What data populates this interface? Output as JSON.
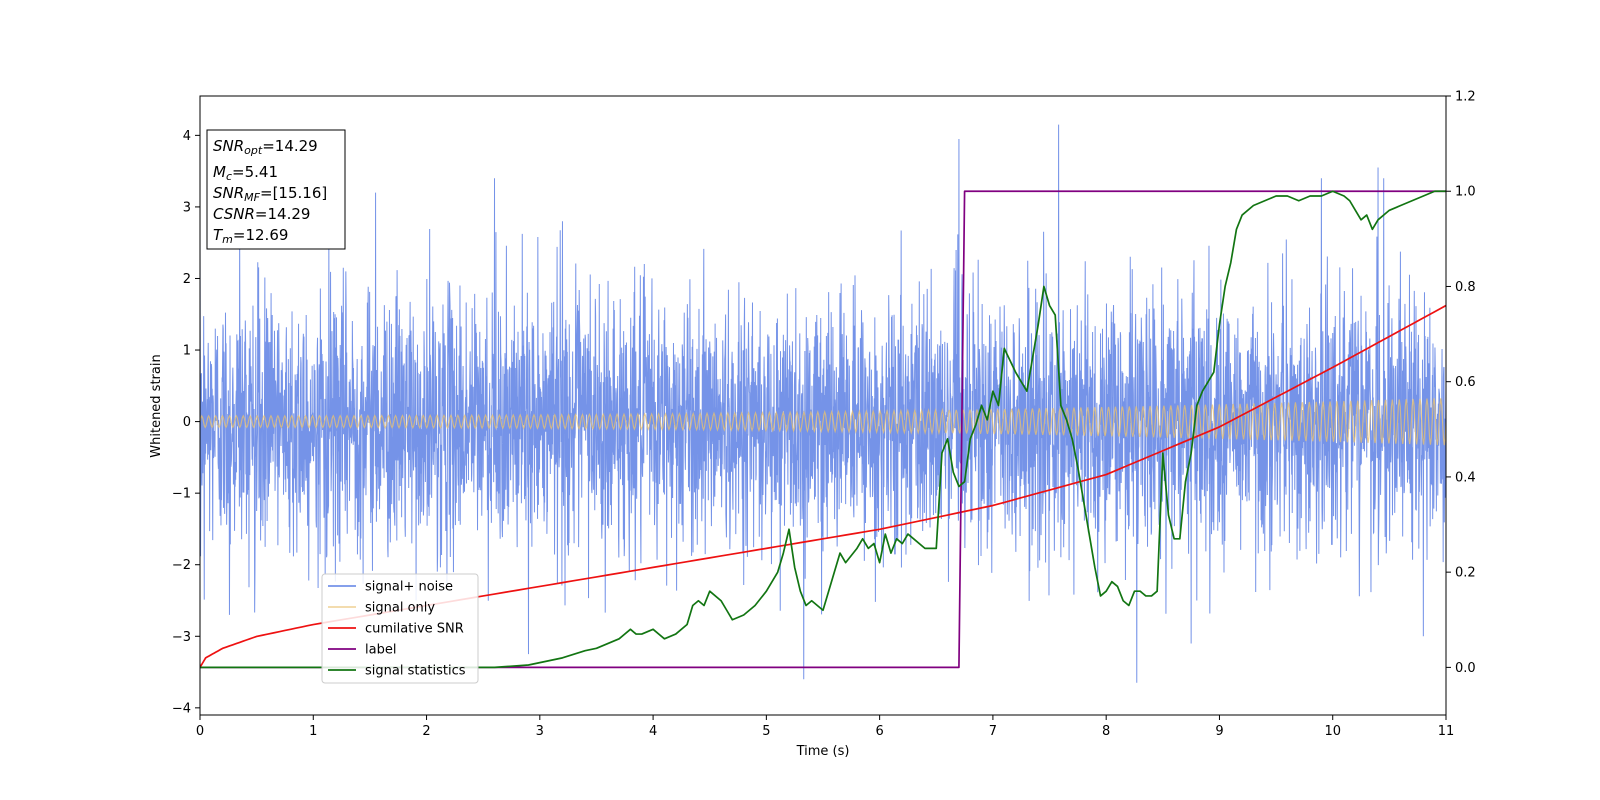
{
  "chart_data": {
    "type": "line",
    "xlabel": "Time (s)",
    "ylabel": "Whitened strain",
    "xlim": [
      0,
      11
    ],
    "ylim": [
      -4.1,
      4.55
    ],
    "y2lim": [
      -0.1,
      1.2
    ],
    "x_ticks": [
      "0",
      "1",
      "2",
      "3",
      "4",
      "5",
      "6",
      "7",
      "8",
      "9",
      "10",
      "11"
    ],
    "y_ticks": [
      "−4",
      "−3",
      "−2",
      "−1",
      "0",
      "1",
      "2",
      "3",
      "4"
    ],
    "y2_ticks": [
      "0.0",
      "0.2",
      "0.4",
      "0.6",
      "0.8",
      "1.0",
      "1.2"
    ],
    "legend_position": "lower-left",
    "annotation": {
      "lines": [
        {
          "base": "SNR",
          "sub": "opt",
          "rest": "=14.29"
        },
        {
          "base": "M",
          "sub": "c",
          "rest": "=5.41"
        },
        {
          "base": "SNR",
          "sub": "MF",
          "rest": "=[15.16]"
        },
        {
          "base": "CSNR",
          "sub": "",
          "rest": "=14.29"
        },
        {
          "base": "T",
          "sub": "m",
          "rest": "=12.69"
        }
      ]
    },
    "series": [
      {
        "name": "signal+ noise",
        "color": "#7593e8",
        "axis": "left",
        "noise_std": 0.9,
        "spikes": [
          [
            0.35,
            2.7
          ],
          [
            1.55,
            3.2
          ],
          [
            2.6,
            3.4
          ],
          [
            3.2,
            2.8
          ],
          [
            6.7,
            3.95
          ],
          [
            7.58,
            4.15
          ],
          [
            8.27,
            -3.65
          ],
          [
            9.9,
            3.4
          ],
          [
            10.4,
            3.55
          ],
          [
            10.45,
            3.4
          ],
          [
            5.33,
            -3.6
          ],
          [
            2.9,
            -3.25
          ],
          [
            8.75,
            -3.1
          ],
          [
            0.26,
            -2.7
          ],
          [
            10.8,
            -3.0
          ]
        ]
      },
      {
        "name": "signal only",
        "color": "#e9c270",
        "axis": "left",
        "amplitude_start": 0.08,
        "amplitude_end": 0.33,
        "cycles": 180
      },
      {
        "name": "cumilative SNR",
        "color": "#ee1111",
        "axis": "right",
        "x": [
          0,
          0.05,
          0.2,
          0.5,
          1,
          2,
          3,
          4,
          5,
          6,
          7,
          8,
          9,
          10,
          11
        ],
        "y": [
          0.0,
          0.02,
          0.04,
          0.065,
          0.09,
          0.13,
          0.17,
          0.21,
          0.25,
          0.29,
          0.34,
          0.405,
          0.505,
          0.63,
          0.76
        ]
      },
      {
        "name": "label",
        "color": "#800080",
        "axis": "right",
        "x": [
          0,
          6.7,
          6.75,
          11
        ],
        "y": [
          0,
          0,
          1,
          1
        ]
      },
      {
        "name": "signal statistics",
        "color": "#127512",
        "axis": "right",
        "x": [
          0,
          1,
          2,
          2.6,
          2.9,
          3.0,
          3.2,
          3.4,
          3.5,
          3.6,
          3.7,
          3.8,
          3.85,
          3.9,
          4.0,
          4.1,
          4.2,
          4.3,
          4.35,
          4.4,
          4.45,
          4.5,
          4.6,
          4.65,
          4.7,
          4.8,
          4.9,
          5.0,
          5.1,
          5.15,
          5.2,
          5.25,
          5.3,
          5.35,
          5.4,
          5.5,
          5.6,
          5.65,
          5.7,
          5.8,
          5.85,
          5.9,
          5.95,
          6.0,
          6.05,
          6.1,
          6.15,
          6.2,
          6.25,
          6.3,
          6.4,
          6.5,
          6.55,
          6.6,
          6.65,
          6.7,
          6.75,
          6.8,
          6.85,
          6.9,
          6.95,
          7.0,
          7.05,
          7.1,
          7.2,
          7.3,
          7.4,
          7.45,
          7.5,
          7.55,
          7.6,
          7.65,
          7.7,
          7.75,
          7.8,
          7.85,
          7.9,
          7.95,
          8.0,
          8.05,
          8.1,
          8.15,
          8.2,
          8.25,
          8.3,
          8.35,
          8.4,
          8.45,
          8.5,
          8.55,
          8.6,
          8.65,
          8.7,
          8.75,
          8.8,
          8.85,
          8.9,
          8.95,
          9.0,
          9.05,
          9.1,
          9.15,
          9.2,
          9.3,
          9.4,
          9.5,
          9.6,
          9.7,
          9.8,
          9.9,
          10.0,
          10.1,
          10.15,
          10.2,
          10.25,
          10.3,
          10.35,
          10.4,
          10.5,
          10.6,
          10.7,
          10.8,
          10.9,
          11.0
        ],
        "y": [
          0.0,
          0.0,
          0.0,
          0.0,
          0.005,
          0.01,
          0.02,
          0.035,
          0.04,
          0.05,
          0.06,
          0.08,
          0.07,
          0.07,
          0.08,
          0.06,
          0.07,
          0.09,
          0.13,
          0.14,
          0.13,
          0.16,
          0.14,
          0.12,
          0.1,
          0.11,
          0.13,
          0.16,
          0.2,
          0.24,
          0.29,
          0.21,
          0.16,
          0.13,
          0.14,
          0.12,
          0.2,
          0.24,
          0.22,
          0.25,
          0.27,
          0.25,
          0.26,
          0.22,
          0.28,
          0.24,
          0.27,
          0.26,
          0.28,
          0.27,
          0.25,
          0.25,
          0.45,
          0.48,
          0.41,
          0.38,
          0.39,
          0.48,
          0.51,
          0.55,
          0.52,
          0.58,
          0.55,
          0.67,
          0.62,
          0.58,
          0.72,
          0.8,
          0.76,
          0.74,
          0.55,
          0.52,
          0.48,
          0.42,
          0.35,
          0.28,
          0.21,
          0.15,
          0.16,
          0.18,
          0.17,
          0.14,
          0.13,
          0.16,
          0.16,
          0.15,
          0.15,
          0.16,
          0.45,
          0.32,
          0.27,
          0.27,
          0.39,
          0.45,
          0.55,
          0.58,
          0.6,
          0.62,
          0.72,
          0.8,
          0.85,
          0.92,
          0.95,
          0.97,
          0.98,
          0.99,
          0.99,
          0.98,
          0.99,
          0.99,
          1.0,
          0.99,
          0.98,
          0.96,
          0.94,
          0.95,
          0.92,
          0.94,
          0.96,
          0.97,
          0.98,
          0.99,
          1.0,
          1.0
        ]
      }
    ]
  }
}
